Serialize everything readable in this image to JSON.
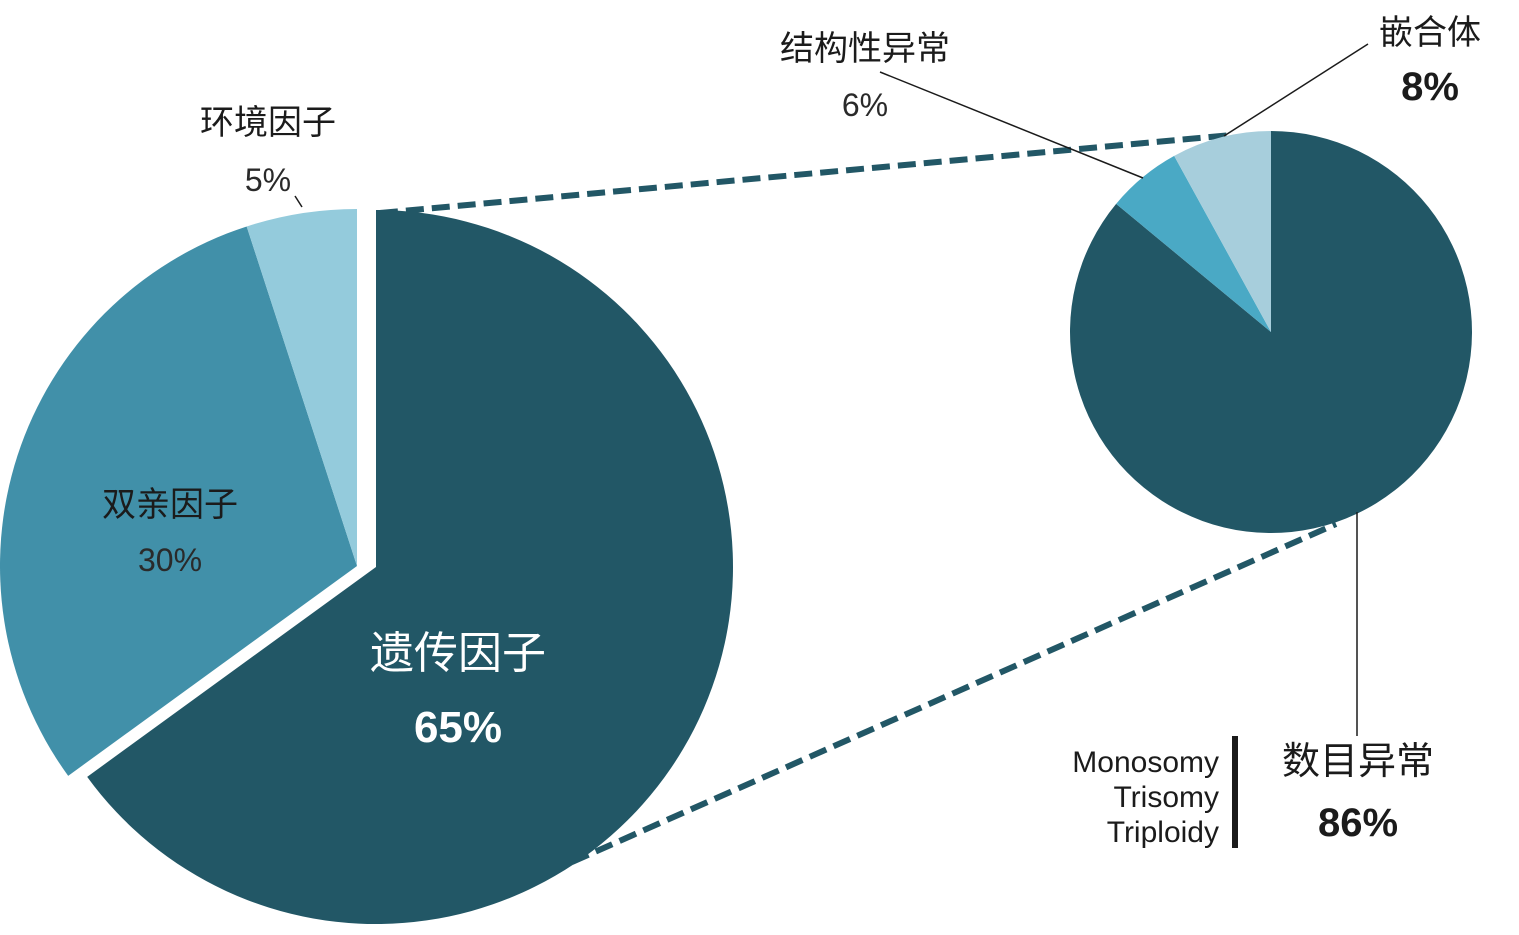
{
  "chart_data": [
    {
      "type": "pie",
      "series": [
        {
          "label": "遗传因子",
          "value": 65,
          "display": "65%",
          "color": "#225766",
          "exploded": true
        },
        {
          "label": "双亲因子",
          "value": 30,
          "display": "30%",
          "color": "#4190a9"
        },
        {
          "label": "环境因子",
          "value": 5,
          "display": "5%",
          "color": "#94cbdc"
        }
      ]
    },
    {
      "type": "pie",
      "series": [
        {
          "label": "数目异常",
          "value": 86,
          "display": "86%",
          "color": "#225766",
          "subtypes": [
            "Monosomy",
            "Trisomy",
            "Triploidy"
          ]
        },
        {
          "label": "结构性异常",
          "value": 6,
          "display": "6%",
          "color": "#4aa9c5"
        },
        {
          "label": "嵌合体",
          "value": 8,
          "display": "8%",
          "color": "#a7cedc"
        }
      ]
    }
  ]
}
